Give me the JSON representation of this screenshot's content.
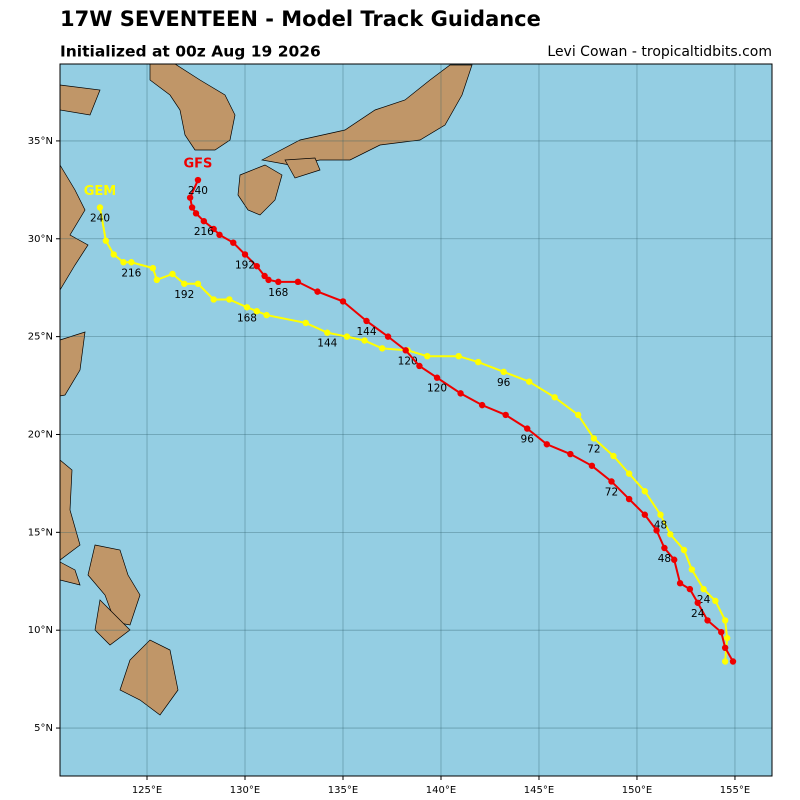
{
  "chart_data": {
    "type": "track",
    "title": "17W SEVENTEEN - Model Track Guidance",
    "subtitle": "Initialized at 00z Aug 19 2026",
    "credit": "Levi Cowan - tropicaltidbits.com",
    "xlim": [
      120.56,
      156.89
    ],
    "ylim": [
      2.55,
      38.93
    ],
    "xticks": [
      {
        "value": 125,
        "label": "125°E"
      },
      {
        "value": 130,
        "label": "130°E"
      },
      {
        "value": 135,
        "label": "135°E"
      },
      {
        "value": 140,
        "label": "140°E"
      },
      {
        "value": 145,
        "label": "145°E"
      },
      {
        "value": 150,
        "label": "150°E"
      },
      {
        "value": 155,
        "label": "155°E"
      }
    ],
    "yticks": [
      {
        "value": 5,
        "label": "5°N"
      },
      {
        "value": 10,
        "label": "10°N"
      },
      {
        "value": 15,
        "label": "15°N"
      },
      {
        "value": 20,
        "label": "20°N"
      },
      {
        "value": 25,
        "label": "25°N"
      },
      {
        "value": 30,
        "label": "30°N"
      },
      {
        "value": 35,
        "label": "35°N"
      }
    ],
    "grid": true,
    "series": [
      {
        "name": "GFS",
        "color": "#ee0000",
        "x": [
          154.9,
          154.5,
          154.3,
          153.6,
          153.1,
          152.7,
          152.2,
          151.9,
          151.4,
          151.0,
          150.4,
          149.6,
          148.7,
          147.7,
          146.6,
          145.4,
          144.4,
          143.3,
          142.1,
          141.0,
          139.8,
          138.9,
          138.2,
          137.3,
          136.2,
          135.0,
          133.7,
          132.7,
          131.7,
          131.2,
          131.0,
          130.6,
          130.0,
          129.4,
          128.7,
          128.4,
          127.9,
          127.5,
          127.3,
          127.2,
          127.6
        ],
        "values": [
          8.4,
          9.1,
          9.9,
          10.5,
          11.4,
          12.1,
          12.4,
          13.6,
          14.2,
          15.1,
          15.9,
          16.7,
          17.6,
          18.4,
          19.0,
          19.5,
          20.3,
          21.0,
          21.5,
          22.1,
          22.9,
          23.5,
          24.3,
          25.0,
          25.8,
          26.8,
          27.3,
          27.8,
          27.8,
          27.9,
          28.1,
          28.6,
          29.2,
          29.8,
          30.2,
          30.5,
          30.9,
          31.3,
          31.6,
          32.1,
          33.0
        ],
        "labels": [
          24,
          48,
          72,
          96,
          120,
          144,
          168,
          192,
          216,
          240
        ]
      },
      {
        "name": "GEM",
        "color": "#ffff00",
        "x": [
          154.5,
          154.6,
          154.5,
          154.0,
          153.4,
          152.8,
          152.4,
          151.7,
          151.2,
          150.4,
          149.6,
          148.8,
          147.8,
          147.0,
          145.8,
          144.5,
          143.2,
          141.9,
          140.9,
          139.3,
          138.3,
          137.0,
          136.1,
          135.2,
          134.2,
          133.1,
          131.1,
          130.6,
          130.1,
          129.2,
          128.4,
          127.6,
          126.9,
          126.3,
          125.5,
          125.3,
          124.2,
          123.8,
          123.3,
          122.9,
          122.6
        ],
        "values": [
          8.4,
          9.6,
          10.5,
          11.5,
          12.1,
          13.1,
          14.1,
          14.9,
          15.9,
          17.1,
          18.0,
          18.9,
          19.8,
          21.0,
          21.9,
          22.7,
          23.2,
          23.7,
          24.0,
          24.0,
          24.3,
          24.4,
          24.8,
          25.0,
          25.2,
          25.7,
          26.1,
          26.3,
          26.5,
          26.9,
          26.9,
          27.7,
          27.7,
          28.2,
          27.9,
          28.5,
          28.8,
          28.8,
          29.2,
          29.9,
          31.6
        ],
        "labels": [
          24,
          48,
          72,
          96,
          120,
          144,
          168,
          192,
          216,
          240
        ]
      }
    ]
  }
}
